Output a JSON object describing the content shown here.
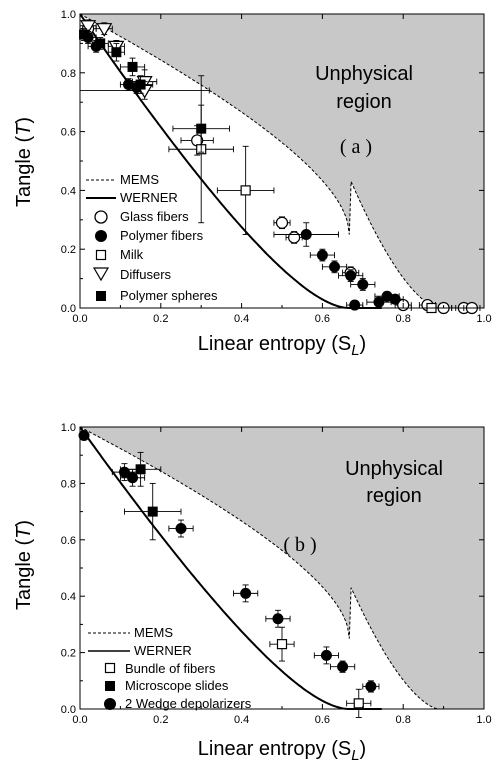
{
  "chart_data": [
    {
      "type": "scatter",
      "panel_label": "( a )",
      "region_label_line1": "Unphysical",
      "region_label_line2": "region",
      "xlabel": "Linear entropy (S",
      "xlabel_sub": "L",
      "xlabel_close": ")",
      "ylabel": "Tangle (",
      "ylabel_italic": "T",
      "ylabel_close": ")",
      "xlim": [
        0.0,
        1.0
      ],
      "ylim": [
        0.0,
        1.0
      ],
      "x_ticks": [
        "0.0",
        "0.2",
        "0.4",
        "0.6",
        "0.8",
        "1.0"
      ],
      "y_ticks": [
        "0.0",
        "0.2",
        "0.4",
        "0.6",
        "0.8",
        "1.0"
      ],
      "legend_position": "lower-left",
      "curves": [
        {
          "name": "MEMS",
          "style": "dashed"
        },
        {
          "name": "WERNER",
          "style": "solid"
        }
      ],
      "series": [
        {
          "name": "Glass fibers",
          "marker": "circle-open",
          "points": [
            [
              0.02,
              0.95,
              0.02,
              0.02
            ],
            [
              0.29,
              0.57,
              0.04,
              0.05
            ],
            [
              0.5,
              0.29,
              0.02,
              0.02
            ],
            [
              0.53,
              0.24,
              0.02,
              0.02
            ],
            [
              0.67,
              0.12,
              0.02,
              0.02
            ],
            [
              0.8,
              0.01,
              0.02,
              0.01
            ],
            [
              0.86,
              0.01,
              0.02,
              0.01
            ],
            [
              0.9,
              0.0,
              0.02,
              0.0
            ],
            [
              0.95,
              0.0,
              0.02,
              0.0
            ],
            [
              0.97,
              0.0,
              0.02,
              0.0
            ]
          ]
        },
        {
          "name": "Polymer fibers",
          "marker": "circle-filled",
          "points": [
            [
              0.02,
              0.92,
              0.02,
              0.02
            ],
            [
              0.04,
              0.89,
              0.02,
              0.02
            ],
            [
              0.12,
              0.76,
              0.02,
              0.02
            ],
            [
              0.14,
              0.75,
              0.02,
              0.02
            ],
            [
              0.56,
              0.25,
              0.08,
              0.04
            ],
            [
              0.6,
              0.18,
              0.03,
              0.02
            ],
            [
              0.63,
              0.14,
              0.03,
              0.02
            ],
            [
              0.67,
              0.11,
              0.03,
              0.02
            ],
            [
              0.7,
              0.08,
              0.03,
              0.02
            ],
            [
              0.74,
              0.02,
              0.03,
              0.01
            ],
            [
              0.76,
              0.04,
              0.03,
              0.01
            ],
            [
              0.78,
              0.03,
              0.02,
              0.01
            ],
            [
              0.68,
              0.01,
              0.02,
              0.01
            ]
          ]
        },
        {
          "name": "Milk",
          "marker": "square-open",
          "points": [
            [
              0.3,
              0.54,
              0.08,
              0.25
            ],
            [
              0.41,
              0.4,
              0.07,
              0.15
            ],
            [
              0.87,
              0.0,
              0.05,
              0.0
            ]
          ]
        },
        {
          "name": "Diffusers",
          "marker": "triangle-open",
          "points": [
            [
              0.02,
              0.96,
              0.02,
              0.02
            ],
            [
              0.06,
              0.95,
              0.02,
              0.02
            ],
            [
              0.09,
              0.89,
              0.02,
              0.02
            ],
            [
              0.16,
              0.77,
              0.03,
              0.04
            ],
            [
              0.16,
              0.74,
              0.16,
              0.03
            ]
          ]
        },
        {
          "name": "Polymer spheres",
          "marker": "square-filled",
          "points": [
            [
              0.01,
              0.93,
              0.01,
              0.02
            ],
            [
              0.05,
              0.9,
              0.02,
              0.02
            ],
            [
              0.09,
              0.87,
              0.02,
              0.03
            ],
            [
              0.13,
              0.82,
              0.03,
              0.03
            ],
            [
              0.15,
              0.76,
              0.03,
              0.03
            ],
            [
              0.3,
              0.61,
              0.07,
              0.08
            ]
          ]
        }
      ]
    },
    {
      "type": "scatter",
      "panel_label": "( b )",
      "region_label_line1": "Unphysical",
      "region_label_line2": "region",
      "xlabel": "Linear entropy (S",
      "xlabel_sub": "L",
      "xlabel_close": ")",
      "ylabel": "Tangle (",
      "ylabel_italic": "T",
      "ylabel_close": ")",
      "xlim": [
        0.0,
        1.0
      ],
      "ylim": [
        0.0,
        1.0
      ],
      "x_ticks": [
        "0.0",
        "0.2",
        "0.4",
        "0.6",
        "0.8",
        "1.0"
      ],
      "y_ticks": [
        "0.0",
        "0.2",
        "0.4",
        "0.6",
        "0.8",
        "1.0"
      ],
      "legend_position": "lower-left",
      "curves": [
        {
          "name": "MEMS",
          "style": "dashed"
        },
        {
          "name": "WERNER",
          "style": "solid"
        }
      ],
      "series": [
        {
          "name": "Bundle of fibers",
          "marker": "square-open",
          "points": [
            [
              0.5,
              0.23,
              0.03,
              0.06
            ],
            [
              0.69,
              0.02,
              0.03,
              0.05
            ]
          ]
        },
        {
          "name": "Microscope slides",
          "marker": "square-filled",
          "points": [
            [
              0.15,
              0.85,
              0.05,
              0.06
            ],
            [
              0.18,
              0.7,
              0.07,
              0.1
            ]
          ]
        },
        {
          "name": "2 Wedge depolarizers",
          "marker": "circle-filled",
          "points": [
            [
              0.01,
              0.97,
              0.0,
              0.0
            ],
            [
              0.11,
              0.84,
              0.03,
              0.03
            ],
            [
              0.13,
              0.82,
              0.03,
              0.03
            ],
            [
              0.25,
              0.64,
              0.03,
              0.03
            ],
            [
              0.41,
              0.41,
              0.03,
              0.03
            ],
            [
              0.49,
              0.32,
              0.03,
              0.03
            ],
            [
              0.61,
              0.19,
              0.03,
              0.03
            ],
            [
              0.65,
              0.15,
              0.03,
              0.02
            ],
            [
              0.72,
              0.08,
              0.02,
              0.02
            ]
          ]
        }
      ]
    }
  ]
}
